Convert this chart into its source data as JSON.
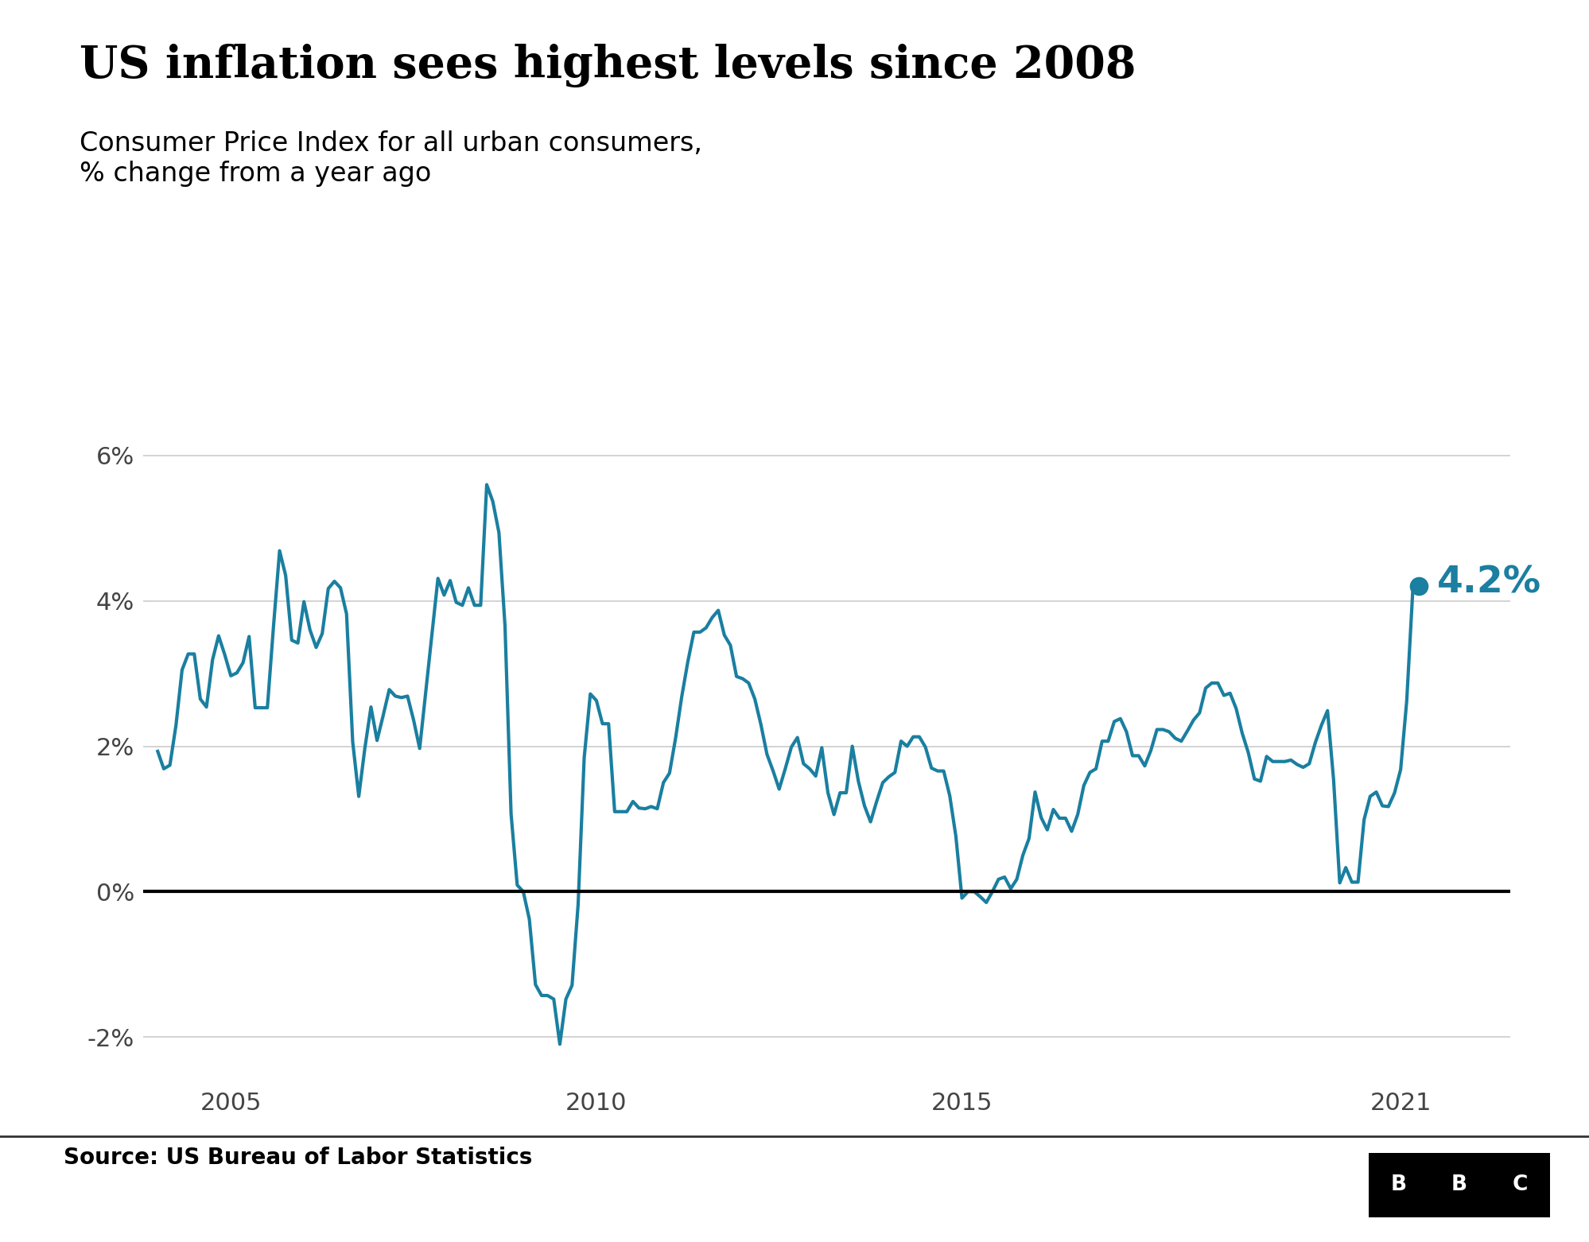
{
  "title": "US inflation sees highest levels since 2008",
  "subtitle": "Consumer Price Index for all urban consumers,\n% change from a year ago",
  "source": "Source: US Bureau of Labor Statistics",
  "line_color": "#1a7fa0",
  "annotation_color": "#1a7fa0",
  "annotation_value": "4.2%",
  "annotation_fontsize": 34,
  "background_color": "#ffffff",
  "ylim": [
    -2.6,
    6.8
  ],
  "yticks": [
    -2,
    0,
    2,
    4,
    6
  ],
  "ytick_labels": [
    "-2%",
    "0%",
    "2%",
    "4%",
    "6%"
  ],
  "xticks": [
    2005,
    2010,
    2015,
    2021
  ],
  "title_fontsize": 40,
  "subtitle_fontsize": 24,
  "source_fontsize": 20,
  "data": {
    "dates": [
      2004.0,
      2004.083,
      2004.167,
      2004.25,
      2004.333,
      2004.417,
      2004.5,
      2004.583,
      2004.667,
      2004.75,
      2004.833,
      2004.917,
      2005.0,
      2005.083,
      2005.167,
      2005.25,
      2005.333,
      2005.417,
      2005.5,
      2005.583,
      2005.667,
      2005.75,
      2005.833,
      2005.917,
      2006.0,
      2006.083,
      2006.167,
      2006.25,
      2006.333,
      2006.417,
      2006.5,
      2006.583,
      2006.667,
      2006.75,
      2006.833,
      2006.917,
      2007.0,
      2007.083,
      2007.167,
      2007.25,
      2007.333,
      2007.417,
      2007.5,
      2007.583,
      2007.667,
      2007.75,
      2007.833,
      2007.917,
      2008.0,
      2008.083,
      2008.167,
      2008.25,
      2008.333,
      2008.417,
      2008.5,
      2008.583,
      2008.667,
      2008.75,
      2008.833,
      2008.917,
      2009.0,
      2009.083,
      2009.167,
      2009.25,
      2009.333,
      2009.417,
      2009.5,
      2009.583,
      2009.667,
      2009.75,
      2009.833,
      2009.917,
      2010.0,
      2010.083,
      2010.167,
      2010.25,
      2010.333,
      2010.417,
      2010.5,
      2010.583,
      2010.667,
      2010.75,
      2010.833,
      2010.917,
      2011.0,
      2011.083,
      2011.167,
      2011.25,
      2011.333,
      2011.417,
      2011.5,
      2011.583,
      2011.667,
      2011.75,
      2011.833,
      2011.917,
      2012.0,
      2012.083,
      2012.167,
      2012.25,
      2012.333,
      2012.417,
      2012.5,
      2012.583,
      2012.667,
      2012.75,
      2012.833,
      2012.917,
      2013.0,
      2013.083,
      2013.167,
      2013.25,
      2013.333,
      2013.417,
      2013.5,
      2013.583,
      2013.667,
      2013.75,
      2013.833,
      2013.917,
      2014.0,
      2014.083,
      2014.167,
      2014.25,
      2014.333,
      2014.417,
      2014.5,
      2014.583,
      2014.667,
      2014.75,
      2014.833,
      2014.917,
      2015.0,
      2015.083,
      2015.167,
      2015.25,
      2015.333,
      2015.417,
      2015.5,
      2015.583,
      2015.667,
      2015.75,
      2015.833,
      2015.917,
      2016.0,
      2016.083,
      2016.167,
      2016.25,
      2016.333,
      2016.417,
      2016.5,
      2016.583,
      2016.667,
      2016.75,
      2016.833,
      2016.917,
      2017.0,
      2017.083,
      2017.167,
      2017.25,
      2017.333,
      2017.417,
      2017.5,
      2017.583,
      2017.667,
      2017.75,
      2017.833,
      2017.917,
      2018.0,
      2018.083,
      2018.167,
      2018.25,
      2018.333,
      2018.417,
      2018.5,
      2018.583,
      2018.667,
      2018.75,
      2018.833,
      2018.917,
      2019.0,
      2019.083,
      2019.167,
      2019.25,
      2019.333,
      2019.417,
      2019.5,
      2019.583,
      2019.667,
      2019.75,
      2019.833,
      2019.917,
      2020.0,
      2020.083,
      2020.167,
      2020.25,
      2020.333,
      2020.417,
      2020.5,
      2020.583,
      2020.667,
      2020.75,
      2020.833,
      2020.917,
      2021.0,
      2021.083,
      2021.167,
      2021.25
    ],
    "values": [
      1.93,
      1.69,
      1.74,
      2.29,
      3.05,
      3.27,
      3.27,
      2.65,
      2.54,
      3.19,
      3.52,
      3.26,
      2.97,
      3.01,
      3.15,
      3.51,
      2.53,
      2.53,
      2.53,
      3.64,
      4.69,
      4.35,
      3.46,
      3.42,
      3.99,
      3.6,
      3.36,
      3.55,
      4.17,
      4.27,
      4.18,
      3.82,
      2.06,
      1.31,
      1.97,
      2.54,
      2.08,
      2.42,
      2.78,
      2.69,
      2.67,
      2.69,
      2.36,
      1.97,
      2.76,
      3.54,
      4.31,
      4.08,
      4.28,
      3.98,
      3.94,
      4.18,
      3.94,
      3.94,
      5.6,
      5.37,
      4.94,
      3.66,
      1.07,
      0.09,
      0.0,
      -0.38,
      -1.28,
      -1.43,
      -1.43,
      -1.48,
      -2.1,
      -1.48,
      -1.29,
      -0.18,
      1.84,
      2.72,
      2.63,
      2.31,
      2.31,
      1.1,
      1.1,
      1.1,
      1.24,
      1.15,
      1.14,
      1.17,
      1.14,
      1.5,
      1.63,
      2.11,
      2.68,
      3.16,
      3.57,
      3.57,
      3.63,
      3.77,
      3.87,
      3.53,
      3.39,
      2.96,
      2.93,
      2.87,
      2.65,
      2.3,
      1.89,
      1.66,
      1.41,
      1.69,
      1.99,
      2.12,
      1.76,
      1.69,
      1.59,
      1.98,
      1.36,
      1.06,
      1.36,
      1.36,
      2.0,
      1.52,
      1.18,
      0.96,
      1.24,
      1.5,
      1.58,
      1.64,
      2.07,
      2.0,
      2.13,
      2.13,
      1.99,
      1.7,
      1.66,
      1.66,
      1.32,
      0.76,
      -0.09,
      0.0,
      0.0,
      -0.07,
      -0.15,
      0.0,
      0.17,
      0.2,
      0.04,
      0.17,
      0.5,
      0.73,
      1.37,
      1.02,
      0.85,
      1.13,
      1.01,
      1.01,
      0.83,
      1.06,
      1.46,
      1.64,
      1.69,
      2.07,
      2.07,
      2.34,
      2.38,
      2.2,
      1.87,
      1.87,
      1.73,
      1.94,
      2.23,
      2.23,
      2.2,
      2.11,
      2.07,
      2.21,
      2.36,
      2.46,
      2.8,
      2.87,
      2.87,
      2.7,
      2.73,
      2.52,
      2.18,
      1.91,
      1.55,
      1.52,
      1.86,
      1.79,
      1.79,
      1.79,
      1.81,
      1.75,
      1.71,
      1.76,
      2.05,
      2.29,
      2.49,
      1.54,
      0.12,
      0.33,
      0.13,
      0.13,
      0.99,
      1.31,
      1.37,
      1.18,
      1.17,
      1.36,
      1.68,
      2.62,
      4.16,
      4.2
    ]
  },
  "last_date": 2021.25,
  "last_value": 4.2,
  "zero_line_color": "#000000",
  "grid_color": "#cccccc",
  "xlim_start": 2003.8,
  "xlim_end": 2022.5
}
